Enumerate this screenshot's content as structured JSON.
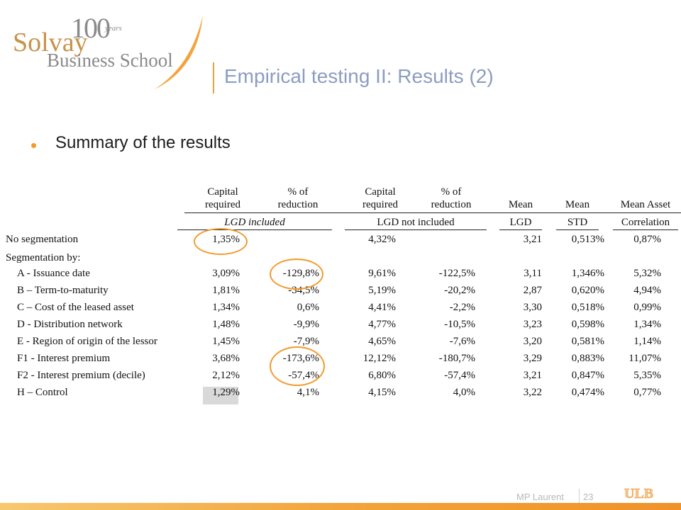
{
  "logo": {
    "hundred": "100",
    "years": "years",
    "line1": "Solvay",
    "line2": "Business School"
  },
  "title": "Empirical testing II: Results (2)",
  "bullet": "Summary of the results",
  "table": {
    "headers": {
      "cap1": [
        "Capital",
        "required"
      ],
      "red1": [
        "% of",
        "reduction"
      ],
      "cap2": [
        "Capital",
        "required"
      ],
      "red2": [
        "% of",
        "reduction"
      ],
      "mean_lgd": "Mean",
      "mean_std": "Mean",
      "mean_asset": "Mean Asset"
    },
    "subheaders": {
      "lgd_included": "LGD included",
      "lgd_not_included": "LGD not included",
      "lgd": "LGD",
      "std": "STD",
      "correlation": "Correlation"
    },
    "section_label": "Segmentation by:",
    "rows": [
      {
        "label": "No segmentation",
        "cap1": "1,35%",
        "red1": "",
        "cap2": "4,32%",
        "red2": "",
        "lgd": "3,21",
        "std": "0,513%",
        "corr": "0,87%"
      },
      {
        "label": "A - Issuance date",
        "cap1": "3,09%",
        "red1": "-129,8%",
        "cap2": "9,61%",
        "red2": "-122,5%",
        "lgd": "3,11",
        "std": "1,346%",
        "corr": "5,32%"
      },
      {
        "label": "B – Term-to-maturity",
        "cap1": "1,81%",
        "red1": "-34,5%",
        "cap2": "5,19%",
        "red2": "-20,2%",
        "lgd": "2,87",
        "std": "0,620%",
        "corr": "4,94%"
      },
      {
        "label": "C – Cost of the leased asset",
        "cap1": "1,34%",
        "red1": "0,6%",
        "cap2": "4,41%",
        "red2": "-2,2%",
        "lgd": "3,30",
        "std": "0,518%",
        "corr": "0,99%"
      },
      {
        "label": "D - Distribution network",
        "cap1": "1,48%",
        "red1": "-9,9%",
        "cap2": "4,77%",
        "red2": "-10,5%",
        "lgd": "3,23",
        "std": "0,598%",
        "corr": "1,34%"
      },
      {
        "label": "E - Region of origin of the lessor",
        "cap1": "1,45%",
        "red1": "-7,9%",
        "cap2": "4,65%",
        "red2": "-7,6%",
        "lgd": "3,20",
        "std": "0,581%",
        "corr": "1,14%"
      },
      {
        "label": "F1 - Interest premium",
        "cap1": "3,68%",
        "red1": "-173,6%",
        "cap2": "12,12%",
        "red2": "-180,7%",
        "lgd": "3,29",
        "std": "0,883%",
        "corr": "11,07%"
      },
      {
        "label": "F2 - Interest premium (decile)",
        "cap1": "2,12%",
        "red1": "-57,4%",
        "cap2": "6,80%",
        "red2": "-57,4%",
        "lgd": "3,21",
        "std": "0,847%",
        "corr": "5,35%"
      },
      {
        "label": "H – Control",
        "cap1": "1,29%",
        "red1": "4,1%",
        "cap2": "4,15%",
        "red2": "4,0%",
        "lgd": "3,22",
        "std": "0,474%",
        "corr": "0,77%"
      }
    ]
  },
  "footer": {
    "author": "MP Laurent",
    "page": "23",
    "ulb": "ULB"
  },
  "colors": {
    "accent": "#f29a2c",
    "title": "#8c9dc0",
    "logo_gold": "#c8924a",
    "logo_gray": "#8a8a8a"
  }
}
